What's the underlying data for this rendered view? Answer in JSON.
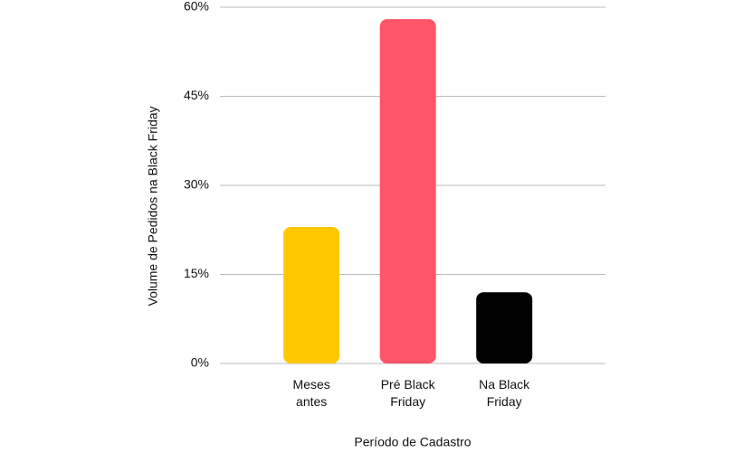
{
  "chart_data": {
    "type": "bar",
    "x_label": "Período de Cadastro",
    "y_label": "Volume de Pedidos na Black Friday",
    "categories": [
      "Meses antes",
      "Pré Black Friday",
      "Na Black Friday"
    ],
    "values": [
      23,
      58,
      12
    ],
    "colors": [
      "#ffc800",
      "#ff556b",
      "#000000"
    ],
    "ylim": [
      0,
      60
    ],
    "yticks": [
      {
        "value": 0,
        "label": "0%"
      },
      {
        "value": 15,
        "label": "15%"
      },
      {
        "value": 30,
        "label": "30%"
      },
      {
        "value": 45,
        "label": "45%"
      },
      {
        "value": 60,
        "label": "60%"
      }
    ],
    "grid": true
  }
}
